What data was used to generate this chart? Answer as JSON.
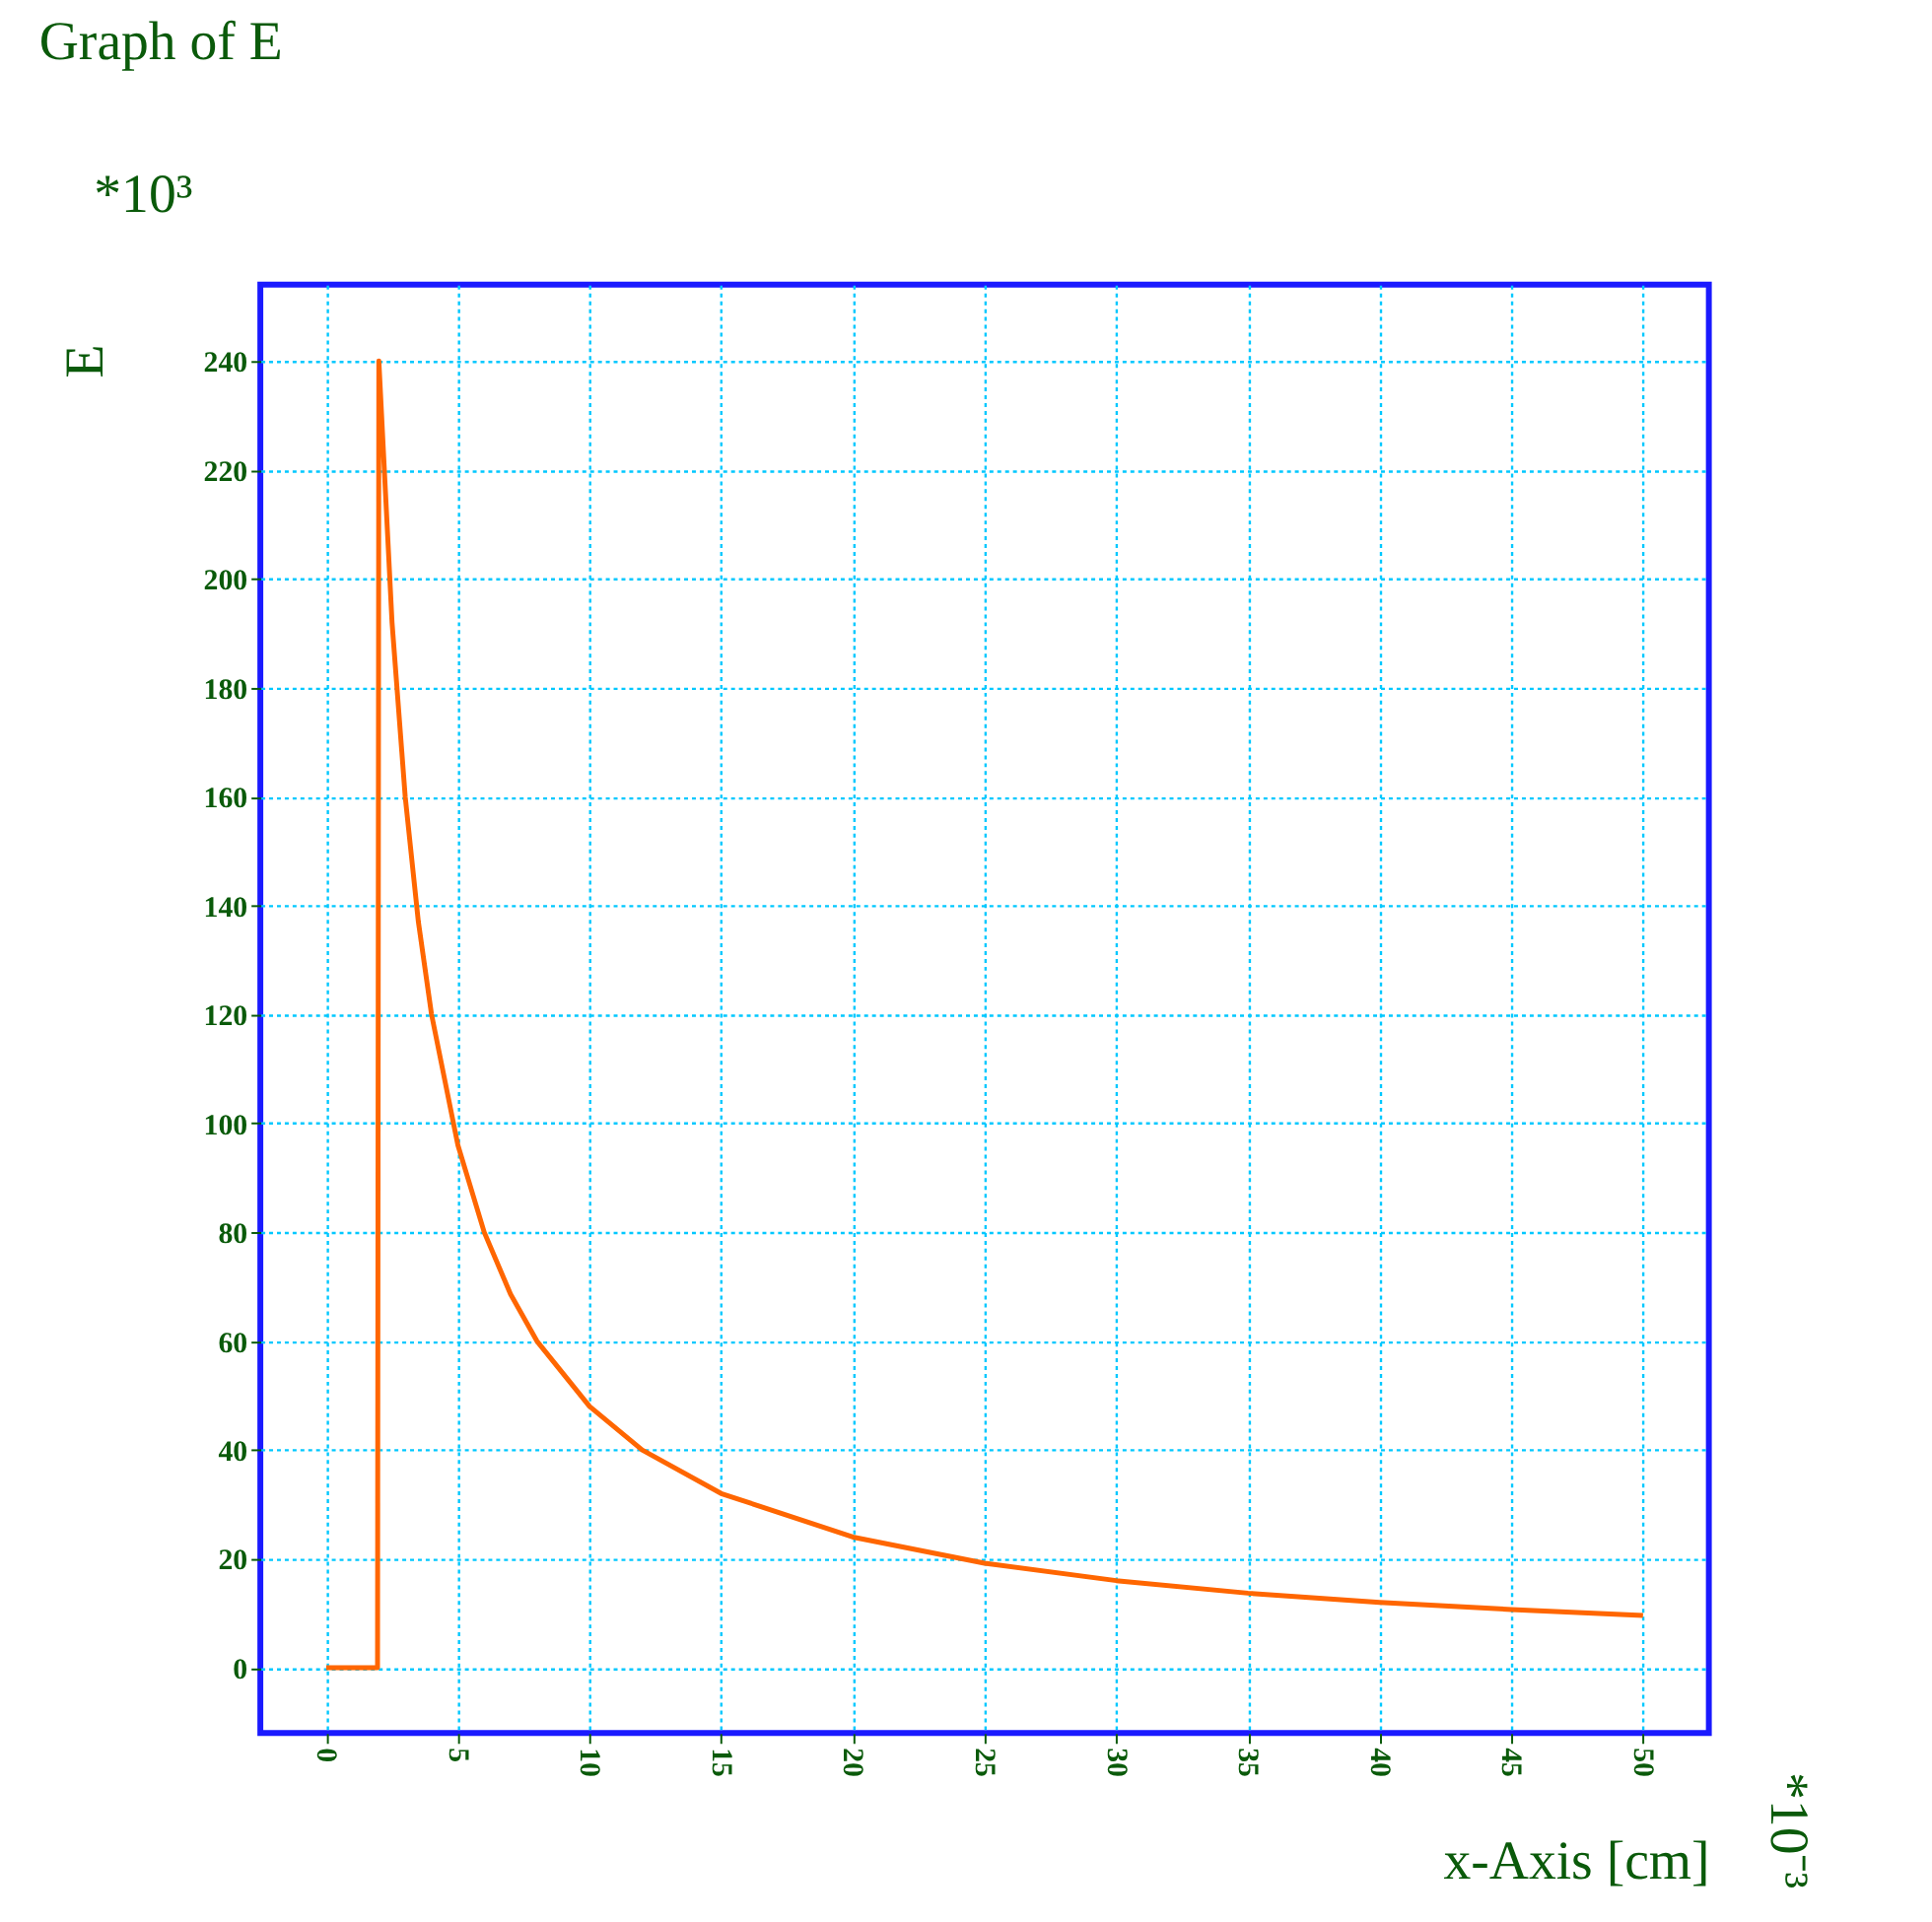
{
  "chart_data": {
    "type": "line",
    "title": "Graph of E",
    "xlabel": "x-Axis [cm]",
    "ylabel": "E",
    "annotations": [
      "*10³",
      "*10⁻³"
    ],
    "x": [
      0,
      1.95,
      2,
      2.5,
      3,
      3.5,
      4,
      5,
      6,
      7,
      8,
      10,
      12,
      15,
      20,
      25,
      30,
      35,
      40,
      45,
      50
    ],
    "series": [
      {
        "color": "#ff6600",
        "values": [
          0,
          0,
          240,
          192,
          160,
          137,
          120,
          96,
          80,
          68.6,
          60,
          48,
          40,
          32,
          24,
          19.2,
          16,
          13.7,
          12,
          10.7,
          9.6
        ]
      }
    ],
    "xlim": [
      -2.5,
      52.5
    ],
    "ylim": [
      -12,
      254
    ],
    "xticks": [
      0,
      5,
      10,
      15,
      20,
      25,
      30,
      35,
      40,
      45,
      50
    ],
    "yticks": [
      0,
      20,
      40,
      60,
      80,
      100,
      120,
      140,
      160,
      180,
      200,
      220,
      240
    ],
    "grid": true,
    "marker": "none",
    "line_style": "solid"
  }
}
